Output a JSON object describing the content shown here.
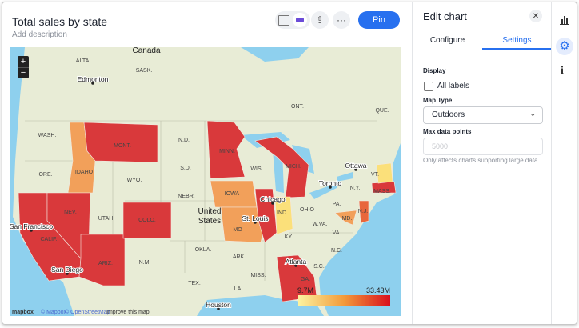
{
  "header": {
    "title": "Total sales by state",
    "subtitle": "Add description",
    "pin_button": "Pin"
  },
  "map": {
    "labels": [
      "Canada",
      "ALTA.",
      "SASK.",
      "Edmonton",
      "ONT.",
      "QUE.",
      "WASH.",
      "MONT.",
      "N.D.",
      "MINN.",
      "ORE.",
      "IDAHO",
      "WYO.",
      "S.D.",
      "WIS.",
      "MICH.",
      "Ottawa",
      "VT.",
      "Toronto",
      "N.Y.",
      "MASS.",
      "IOWA",
      "NEBR.",
      "Chicago",
      "PA.",
      "NEV.",
      "UTAH",
      "COLO.",
      "IND.",
      "OHIO",
      "St. Louis",
      "MO",
      "San Francisco",
      "CALIF.",
      "KY.",
      "W.VA.",
      "MD.",
      "N.J.",
      "VA.",
      "OKLA.",
      "ARK.",
      "N.C.",
      "ARIZ.",
      "N.M.",
      "Atlanta",
      "S.C.",
      "San Diego",
      "MISS.",
      "GA.",
      "TEX.",
      "LA.",
      "Houston"
    ],
    "country_label": "United States",
    "zoom_in": "+",
    "zoom_out": "−",
    "legend": {
      "min": "9.7M",
      "max": "33.43M"
    },
    "attribution": {
      "logo": "mapbox",
      "mapbox": "© Mapbox",
      "osm": "© OpenStreetMap",
      "improve": "Improve this map"
    }
  },
  "panel": {
    "title": "Edit chart",
    "tabs": [
      "Configure",
      "Settings"
    ],
    "section": "Display",
    "all_labels": "All labels",
    "map_type_label": "Map Type",
    "map_type_value": "Outdoors",
    "max_points_label": "Max data points",
    "max_points_placeholder": "5000",
    "max_points_hint": "Only affects charts supporting large data"
  }
}
